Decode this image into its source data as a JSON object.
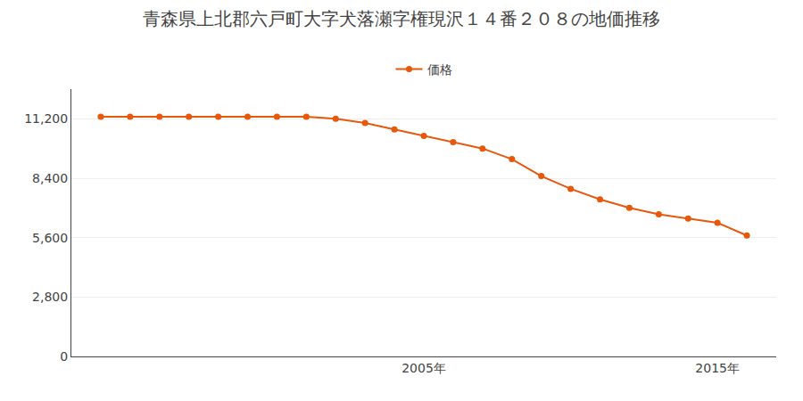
{
  "chart_data": {
    "type": "line",
    "title": "青森県上北郡六戸町大字犬落瀬字権現沢１４番２０８の地価推移",
    "x": [
      1994,
      1995,
      1996,
      1997,
      1998,
      1999,
      2000,
      2001,
      2002,
      2003,
      2004,
      2005,
      2006,
      2007,
      2008,
      2009,
      2010,
      2011,
      2012,
      2013,
      2014,
      2015,
      2016
    ],
    "series": [
      {
        "name": "価格",
        "color": "#e8570a",
        "marker": "circle",
        "line_style": "solid",
        "values": [
          11300,
          11300,
          11300,
          11300,
          11300,
          11300,
          11300,
          11300,
          11200,
          11000,
          10700,
          10400,
          10100,
          9800,
          9300,
          8500,
          7900,
          7400,
          7000,
          6700,
          6500,
          6300,
          5700
        ]
      }
    ],
    "xlim": [
      1993,
      2017
    ],
    "xticks": [
      {
        "value": 2005,
        "label": "2005年"
      },
      {
        "value": 2015,
        "label": "2015年"
      }
    ],
    "ylim": [
      0,
      12600
    ],
    "yticks": [
      0,
      {
        "value": 2800,
        "label": "2,800"
      },
      {
        "value": 5600,
        "label": "5,600"
      },
      {
        "value": 8400,
        "label": "8,400"
      },
      {
        "value": 11200,
        "label": "11,200"
      }
    ],
    "grid": "y",
    "legend": "top"
  }
}
